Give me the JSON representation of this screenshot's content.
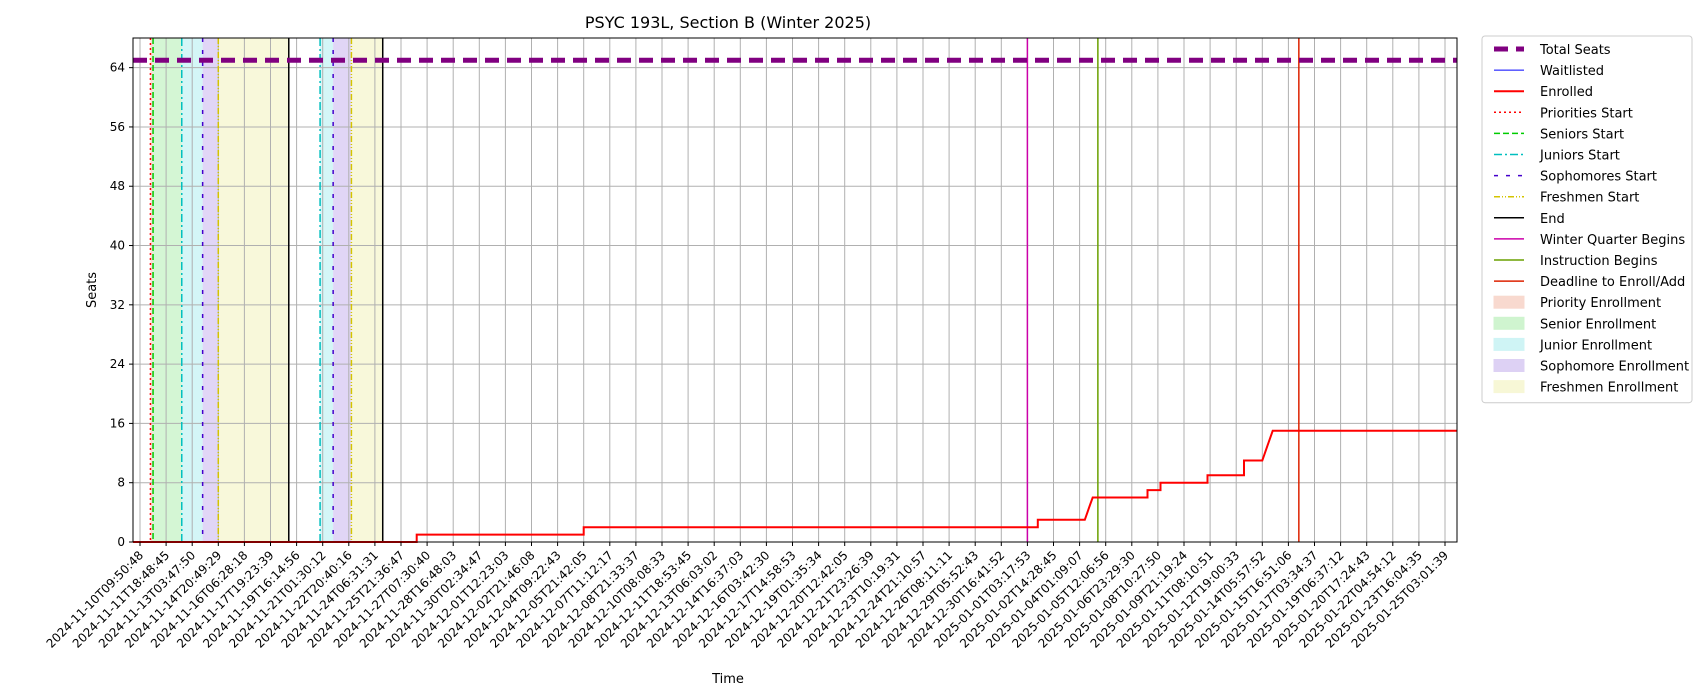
{
  "chart_data": {
    "type": "line",
    "title": "PSYC 193L, Section B (Winter 2025)",
    "xlabel": "Time",
    "ylabel": "Seats",
    "ylim": [
      0,
      68
    ],
    "yticks": [
      0,
      8,
      16,
      24,
      32,
      40,
      48,
      56,
      64
    ],
    "grid": true,
    "legend_position": "outside-right",
    "x_range_ticks": [
      0,
      50.5
    ],
    "xticks": [
      "2024-11-10T09:50:48",
      "2024-11-11T18:48:45",
      "2024-11-13T03:47:50",
      "2024-11-14T20:49:29",
      "2024-11-16T06:28:18",
      "2024-11-17T19:23:39",
      "2024-11-19T16:14:56",
      "2024-11-21T01:30:12",
      "2024-11-22T20:40:16",
      "2024-11-24T06:31:31",
      "2024-11-25T21:36:47",
      "2024-11-27T07:30:40",
      "2024-11-28T16:48:03",
      "2024-11-30T02:34:47",
      "2024-12-01T12:23:03",
      "2024-12-02T21:46:08",
      "2024-12-04T09:22:43",
      "2024-12-05T21:42:05",
      "2024-12-07T11:12:17",
      "2024-12-08T21:33:37",
      "2024-12-10T08:08:33",
      "2024-12-11T18:53:45",
      "2024-12-13T06:03:02",
      "2024-12-14T16:37:03",
      "2024-12-16T03:42:30",
      "2024-12-17T14:58:53",
      "2024-12-19T01:35:34",
      "2024-12-20T12:42:05",
      "2024-12-21T23:26:39",
      "2024-12-23T10:19:31",
      "2024-12-24T21:10:57",
      "2024-12-26T08:11:11",
      "2024-12-29T05:52:43",
      "2024-12-30T16:41:52",
      "2025-01-01T03:17:53",
      "2025-01-02T14:28:45",
      "2025-01-04T01:09:07",
      "2025-01-05T12:06:56",
      "2025-01-06T23:29:30",
      "2025-01-08T10:27:50",
      "2025-01-09T21:19:24",
      "2025-01-11T08:10:51",
      "2025-01-12T19:00:33",
      "2025-01-14T05:57:52",
      "2025-01-15T16:51:06",
      "2025-01-17T03:34:37",
      "2025-01-19T06:37:12",
      "2025-01-20T17:24:43",
      "2025-01-22T04:54:12",
      "2025-01-23T16:04:35",
      "2025-01-25T03:01:39"
    ],
    "series": [
      {
        "name": "Total Seats",
        "color": "#800080",
        "style": "dashed-thick",
        "x": [
          -1,
          50.5
        ],
        "y": [
          65,
          65
        ]
      },
      {
        "name": "Waitlisted",
        "color": "#0000ff",
        "style": "solid-thin",
        "x": [
          -1,
          50.5
        ],
        "y": [
          0,
          0
        ]
      },
      {
        "name": "Enrolled",
        "color": "#ff0000",
        "style": "solid",
        "step": true,
        "x": [
          -1,
          10.6,
          10.6,
          17,
          17,
          34.4,
          34.4,
          36.2,
          36.3,
          36.4,
          36.5,
          38.6,
          38.6,
          39.1,
          39.1,
          40.9,
          40.9,
          42.3,
          42.3,
          43,
          43.1,
          43.2,
          43.3,
          43.4,
          43.5,
          50.5
        ],
        "y": [
          0,
          0,
          1,
          1,
          2,
          2,
          3,
          3,
          4,
          5,
          6,
          6,
          7,
          7,
          8,
          8,
          9,
          9,
          11,
          11,
          12,
          13,
          14,
          15,
          15,
          15
        ]
      }
    ],
    "event_lines": [
      {
        "name": "Priorities Start",
        "color": "#ff0000",
        "style": "dotted",
        "x": [
          0.4
        ]
      },
      {
        "name": "Seniors Start",
        "color": "#00cc00",
        "style": "dashed",
        "x": [
          0.5
        ]
      },
      {
        "name": "Juniors Start",
        "color": "#00bfbf",
        "style": "dashdot",
        "x": [
          1.6,
          6.9
        ]
      },
      {
        "name": "Sophomores Start",
        "color": "#4400cc",
        "style": "loosedash",
        "x": [
          2.4,
          7.4
        ]
      },
      {
        "name": "Freshmen Start",
        "color": "#d4c400",
        "style": "dashdotdot",
        "x": [
          3.0,
          8.1
        ]
      },
      {
        "name": "End",
        "color": "#000000",
        "style": "solid",
        "x": [
          5.7,
          9.3
        ]
      },
      {
        "name": "Winter Quarter Begins",
        "color": "#cc00aa",
        "style": "solid",
        "x": [
          34.0
        ]
      },
      {
        "name": "Instruction Begins",
        "color": "#6aa000",
        "style": "solid",
        "x": [
          36.7
        ]
      },
      {
        "name": "Deadline to Enroll/Add",
        "color": "#dd2200",
        "style": "solid",
        "x": [
          44.4
        ]
      }
    ],
    "spans": [
      {
        "name": "Priority Enrollment",
        "color": "#f4c0b0",
        "ranges": [
          [
            0.4,
            0.5
          ]
        ]
      },
      {
        "name": "Senior Enrollment",
        "color": "#b0eeb0",
        "ranges": [
          [
            0.5,
            1.6
          ]
        ]
      },
      {
        "name": "Junior Enrollment",
        "color": "#b0eef0",
        "ranges": [
          [
            1.6,
            2.4
          ],
          [
            6.9,
            7.4
          ]
        ]
      },
      {
        "name": "Sophomore Enrollment",
        "color": "#c8b4ee",
        "ranges": [
          [
            2.4,
            3.0
          ],
          [
            7.4,
            8.1
          ]
        ]
      },
      {
        "name": "Freshmen Enrollment",
        "color": "#f2f2bc",
        "ranges": [
          [
            3.0,
            5.7
          ],
          [
            8.1,
            9.3
          ]
        ]
      }
    ],
    "legend": [
      {
        "label": "Total Seats",
        "kind": "line",
        "color": "#800080",
        "style": "dashed-thick"
      },
      {
        "label": "Waitlisted",
        "kind": "line",
        "color": "#0000ff",
        "style": "solid-thin"
      },
      {
        "label": "Enrolled",
        "kind": "line",
        "color": "#ff0000",
        "style": "solid"
      },
      {
        "label": "Priorities Start",
        "kind": "line",
        "color": "#ff0000",
        "style": "dotted"
      },
      {
        "label": "Seniors Start",
        "kind": "line",
        "color": "#00cc00",
        "style": "dashed"
      },
      {
        "label": "Juniors Start",
        "kind": "line",
        "color": "#00bfbf",
        "style": "dashdot"
      },
      {
        "label": "Sophomores Start",
        "kind": "line",
        "color": "#4400cc",
        "style": "loosedash"
      },
      {
        "label": "Freshmen Start",
        "kind": "line",
        "color": "#d4c400",
        "style": "dashdotdot"
      },
      {
        "label": "End",
        "kind": "line",
        "color": "#000000",
        "style": "solid"
      },
      {
        "label": "Winter Quarter Begins",
        "kind": "line",
        "color": "#cc00aa",
        "style": "solid"
      },
      {
        "label": "Instruction Begins",
        "kind": "line",
        "color": "#6aa000",
        "style": "solid"
      },
      {
        "label": "Deadline to Enroll/Add",
        "kind": "line",
        "color": "#dd2200",
        "style": "solid"
      },
      {
        "label": "Priority Enrollment",
        "kind": "patch",
        "color": "#f4c0b0"
      },
      {
        "label": "Senior Enrollment",
        "kind": "patch",
        "color": "#b0eeb0"
      },
      {
        "label": "Junior Enrollment",
        "kind": "patch",
        "color": "#b0eef0"
      },
      {
        "label": "Sophomore Enrollment",
        "kind": "patch",
        "color": "#c8b4ee"
      },
      {
        "label": "Freshmen Enrollment",
        "kind": "patch",
        "color": "#f2f2bc"
      }
    ]
  }
}
